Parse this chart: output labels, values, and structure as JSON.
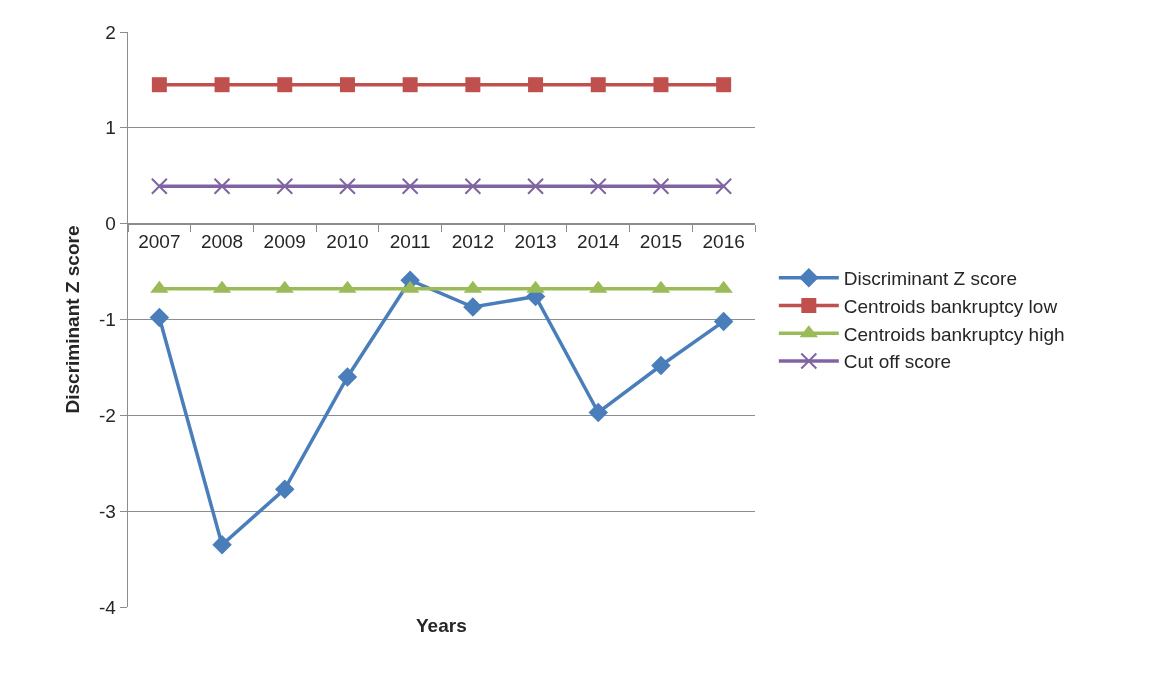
{
  "chart_data": {
    "type": "line",
    "xlabel": "Years",
    "ylabel": "Discriminant Z score",
    "categories": [
      "2007",
      "2008",
      "2009",
      "2010",
      "2011",
      "2012",
      "2013",
      "2014",
      "2015",
      "2016"
    ],
    "series": [
      {
        "name": "Discriminant Z score",
        "color": "#4a7ebb",
        "marker": "diamond",
        "values": [
          -0.98,
          -3.35,
          -2.77,
          -1.6,
          -0.59,
          -0.87,
          -0.76,
          -1.97,
          -1.48,
          -1.02
        ]
      },
      {
        "name": "Centroids bankruptcy low",
        "color": "#c0504d",
        "marker": "square",
        "values": [
          1.45,
          1.45,
          1.45,
          1.45,
          1.45,
          1.45,
          1.45,
          1.45,
          1.45,
          1.45
        ]
      },
      {
        "name": "Centroids bankruptcy high",
        "color": "#9bbb59",
        "marker": "triangle",
        "values": [
          -0.68,
          -0.68,
          -0.68,
          -0.68,
          -0.68,
          -0.68,
          -0.68,
          -0.68,
          -0.68,
          -0.68
        ]
      },
      {
        "name": "Cut off score",
        "color": "#8064a2",
        "marker": "cross",
        "values": [
          0.39,
          0.39,
          0.39,
          0.39,
          0.39,
          0.39,
          0.39,
          0.39,
          0.39,
          0.39
        ]
      }
    ],
    "ylim": [
      -4,
      2
    ],
    "yticks": [
      -4,
      -3,
      -2,
      -1,
      0,
      1,
      2
    ],
    "grid": "y",
    "legend": "right",
    "line_style": "solid"
  }
}
